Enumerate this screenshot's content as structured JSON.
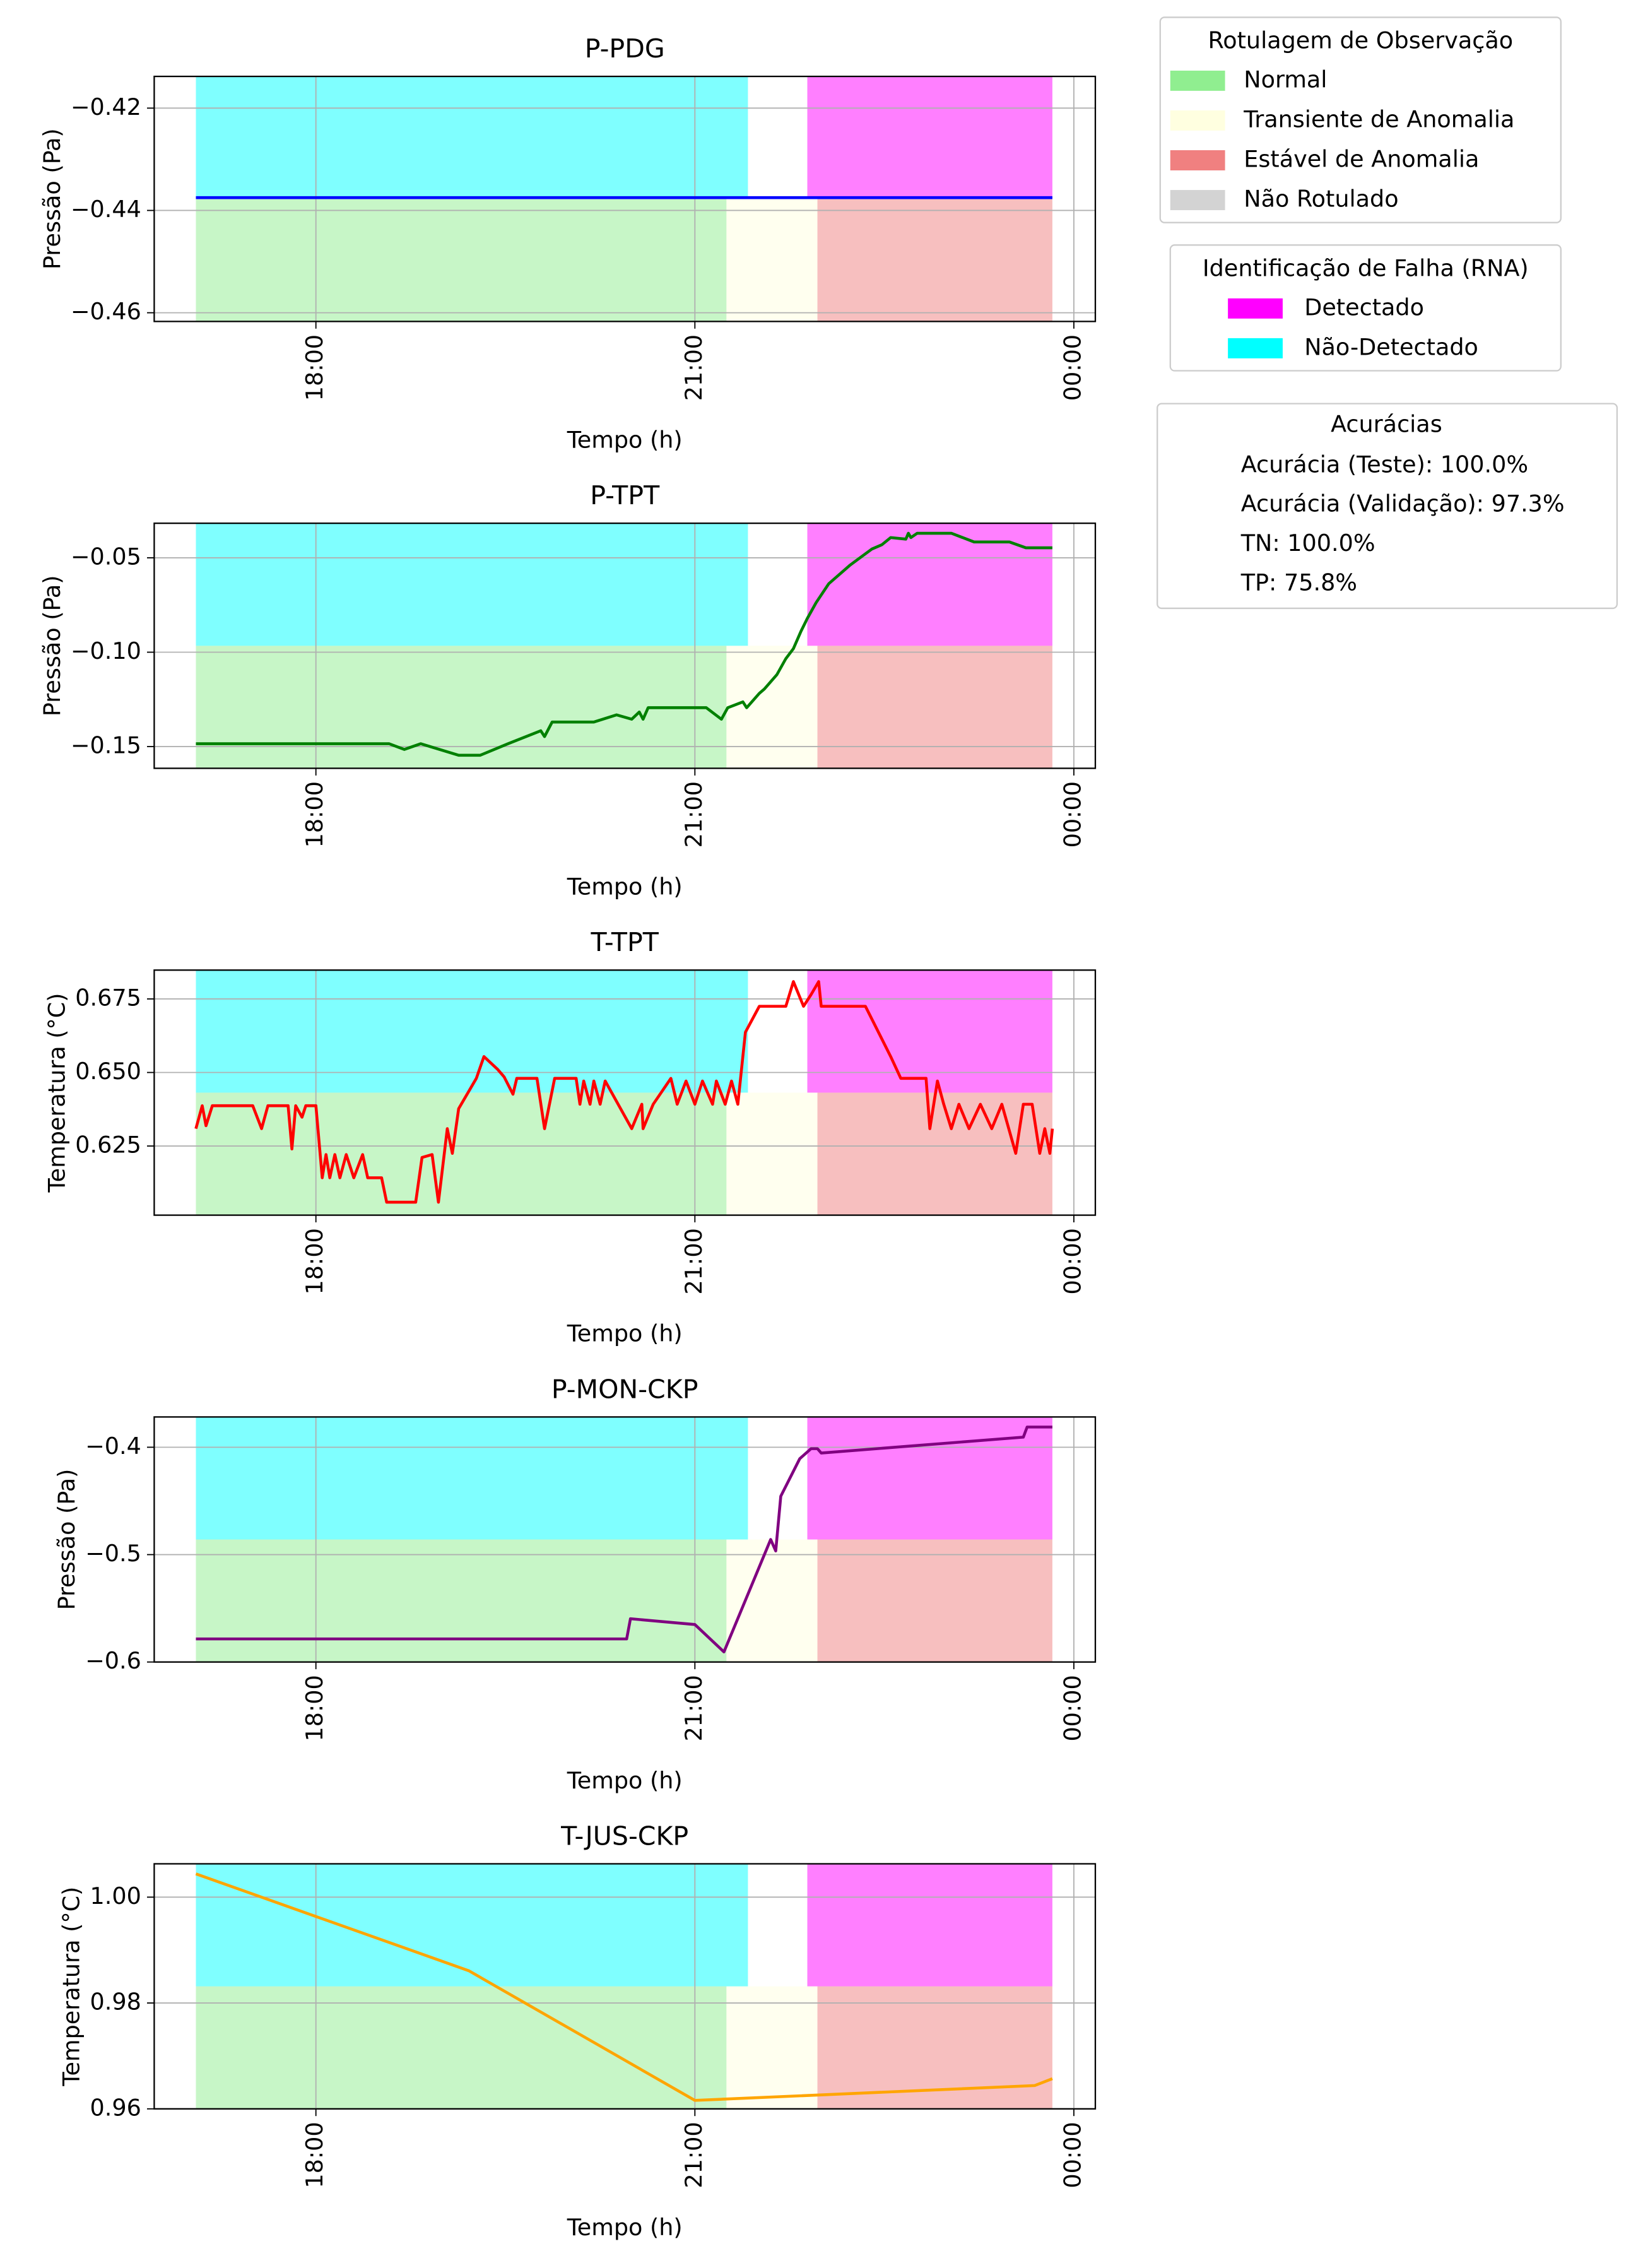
{
  "chart_data": [
    {
      "type": "line",
      "title": "P-PDG",
      "xlabel": "Tempo (h)",
      "ylabel": "Pressão (Pa)",
      "color": "blue",
      "x": [
        17.05,
        23.83
      ],
      "values": [
        -0.4375,
        -0.4375
      ],
      "xlim": [
        16.72,
        24.17
      ],
      "xticks": [
        {
          "value": 18,
          "label": "18:00"
        },
        {
          "value": 21,
          "label": "21:00"
        },
        {
          "value": 24,
          "label": "00:00"
        }
      ],
      "ylim": [
        -0.4617,
        -0.4138
      ],
      "yticks": [
        {
          "value": -0.42,
          "label": "−0.42"
        },
        {
          "value": -0.44,
          "label": "−0.44"
        },
        {
          "value": -0.46,
          "label": "−0.46"
        }
      ],
      "grid": true
    },
    {
      "type": "line",
      "title": "P-TPT",
      "xlabel": "Tempo (h)",
      "ylabel": "Pressão (Pa)",
      "color": "green",
      "x": [
        17.05,
        18.58,
        18.7,
        18.83,
        19.13,
        19.3,
        19.52,
        19.78,
        19.81,
        19.87,
        20.2,
        20.38,
        20.5,
        20.56,
        20.59,
        20.63,
        21.09,
        21.21,
        21.26,
        21.38,
        21.41,
        21.51,
        21.55,
        21.65,
        21.72,
        21.78,
        21.84,
        21.89,
        21.96,
        22.06,
        22.23,
        22.4,
        22.48,
        22.55,
        22.67,
        22.69,
        22.71,
        22.76,
        23.03,
        23.21,
        23.49,
        23.62,
        23.83
      ],
      "values": [
        -0.1485,
        -0.1485,
        -0.1515,
        -0.1485,
        -0.1546,
        -0.1546,
        -0.1485,
        -0.1416,
        -0.1447,
        -0.137,
        -0.137,
        -0.1332,
        -0.1355,
        -0.1317,
        -0.1355,
        -0.1294,
        -0.1294,
        -0.1355,
        -0.1294,
        -0.1263,
        -0.1294,
        -0.1218,
        -0.1195,
        -0.1118,
        -0.1034,
        -0.0981,
        -0.0889,
        -0.0821,
        -0.0737,
        -0.0637,
        -0.0538,
        -0.0454,
        -0.0431,
        -0.0393,
        -0.0401,
        -0.037,
        -0.0393,
        -0.037,
        -0.037,
        -0.0416,
        -0.0416,
        -0.0447,
        -0.0447
      ],
      "xlim": [
        16.72,
        24.17
      ],
      "xticks": [
        {
          "value": 18,
          "label": "18:00"
        },
        {
          "value": 21,
          "label": "21:00"
        },
        {
          "value": 24,
          "label": "00:00"
        }
      ],
      "ylim": [
        -0.1615,
        -0.0317
      ],
      "yticks": [
        {
          "value": -0.05,
          "label": "−0.05"
        },
        {
          "value": -0.1,
          "label": "−0.10"
        },
        {
          "value": -0.15,
          "label": "−0.15"
        }
      ],
      "grid": true
    },
    {
      "type": "line",
      "title": "T-TPT",
      "xlabel": "Tempo (h)",
      "ylabel": "Temperatura (°C)",
      "color": "red",
      "x": [
        17.05,
        17.1,
        17.13,
        17.18,
        17.5,
        17.57,
        17.62,
        17.78,
        17.81,
        17.84,
        17.89,
        17.92,
        18.0,
        18.05,
        18.08,
        18.11,
        18.15,
        18.19,
        18.24,
        18.3,
        18.37,
        18.41,
        18.52,
        18.56,
        18.79,
        18.84,
        18.92,
        18.97,
        19.04,
        19.08,
        19.13,
        19.27,
        19.33,
        19.44,
        19.49,
        19.56,
        19.59,
        19.75,
        19.81,
        19.89,
        20.06,
        20.09,
        20.12,
        20.17,
        20.2,
        20.25,
        20.29,
        20.5,
        20.58,
        20.59,
        20.67,
        20.81,
        20.86,
        20.93,
        21.0,
        21.06,
        21.14,
        21.17,
        21.24,
        21.29,
        21.34,
        21.4,
        21.51,
        21.72,
        21.78,
        21.86,
        21.92,
        21.98,
        22.0,
        22.35,
        22.55,
        22.63,
        22.83,
        22.86,
        22.92,
        22.97,
        23.03,
        23.09,
        23.17,
        23.26,
        23.35,
        23.43,
        23.54,
        23.6,
        23.67,
        23.73,
        23.77,
        23.81,
        23.83
      ],
      "values": [
        0.6309,
        0.6387,
        0.6319,
        0.6387,
        0.6387,
        0.6309,
        0.6387,
        0.6387,
        0.624,
        0.6387,
        0.6348,
        0.6387,
        0.6387,
        0.6142,
        0.6221,
        0.6142,
        0.6221,
        0.6142,
        0.6221,
        0.6142,
        0.6221,
        0.6142,
        0.6142,
        0.6059,
        0.6059,
        0.6211,
        0.6221,
        0.6059,
        0.6309,
        0.6225,
        0.6377,
        0.648,
        0.6554,
        0.651,
        0.6485,
        0.6426,
        0.648,
        0.648,
        0.6309,
        0.648,
        0.648,
        0.6392,
        0.6471,
        0.6392,
        0.6471,
        0.6392,
        0.6471,
        0.6309,
        0.6392,
        0.6309,
        0.6392,
        0.648,
        0.6392,
        0.6471,
        0.6392,
        0.6471,
        0.6392,
        0.6471,
        0.6392,
        0.6471,
        0.6392,
        0.6637,
        0.6725,
        0.6725,
        0.6809,
        0.6725,
        0.6765,
        0.6809,
        0.6725,
        0.6725,
        0.6554,
        0.648,
        0.648,
        0.6309,
        0.6471,
        0.6392,
        0.6309,
        0.6392,
        0.6309,
        0.6392,
        0.6309,
        0.6392,
        0.6225,
        0.6392,
        0.6392,
        0.6225,
        0.6309,
        0.6225,
        0.6309
      ],
      "xlim": [
        16.72,
        24.17
      ],
      "xticks": [
        {
          "value": 18,
          "label": "18:00"
        },
        {
          "value": 21,
          "label": "21:00"
        },
        {
          "value": 24,
          "label": "00:00"
        }
      ],
      "ylim": [
        0.6015,
        0.6848
      ],
      "yticks": [
        0.675,
        {
          "value": 0.65,
          "label": "0.650"
        },
        0.625
      ],
      "grid": true
    },
    {
      "type": "line",
      "title": "P-MON-CKP",
      "xlabel": "Tempo (h)",
      "ylabel": "Pressão (Pa)",
      "color": "purple",
      "x": [
        17.05,
        20.46,
        20.49,
        21.0,
        21.23,
        21.6,
        21.64,
        21.68,
        21.83,
        21.92,
        21.97,
        22.0,
        23.6,
        23.63,
        23.83
      ],
      "values": [
        -0.5785,
        -0.5785,
        -0.5597,
        -0.5651,
        -0.5906,
        -0.4859,
        -0.4966,
        -0.4456,
        -0.4107,
        -0.4013,
        -0.4013,
        -0.4054,
        -0.3906,
        -0.3812,
        -0.3812
      ],
      "xlim": [
        16.72,
        24.17
      ],
      "xticks": [
        {
          "value": 18,
          "label": "18:00"
        },
        {
          "value": 21,
          "label": "21:00"
        },
        {
          "value": 24,
          "label": "00:00"
        }
      ],
      "ylim": [
        -0.6,
        -0.3718
      ],
      "yticks": [
        {
          "value": -0.4,
          "label": "−0.4"
        },
        {
          "value": -0.5,
          "label": "−0.5"
        },
        {
          "value": -0.6,
          "label": "−0.6"
        }
      ],
      "grid": true
    },
    {
      "type": "line",
      "title": "T-JUS-CKP",
      "xlabel": "Tempo (h)",
      "ylabel": "Temperatura (°C)",
      "color": "orange",
      "x": [
        17.05,
        19.21,
        21.0,
        23.69,
        23.83
      ],
      "values": [
        1.0044,
        0.9861,
        0.9616,
        0.9644,
        0.9657
      ],
      "xlim": [
        16.72,
        24.17
      ],
      "xticks": [
        {
          "value": 18,
          "label": "18:00"
        },
        {
          "value": 21,
          "label": "21:00"
        },
        {
          "value": 24,
          "label": "00:00"
        }
      ],
      "ylim": [
        0.96,
        1.0063
      ],
      "yticks": [
        {
          "value": 1,
          "label": "1.00"
        },
        0.98,
        0.96
      ],
      "grid": true
    }
  ],
  "legends": [
    {
      "title": "Rotulagem de Observação",
      "entries": [
        {
          "name": "Normal",
          "color": "#90ee90",
          "spans": [
            [
              17.05,
              21.25
            ]
          ]
        },
        {
          "name": "Transiente de Anomalia",
          "color": "#ffffe0",
          "spans": [
            [
              21.25,
              21.97
            ]
          ]
        },
        {
          "name": "Estável de Anomalia",
          "color": "#f08080",
          "spans": [
            [
              21.97,
              23.83
            ]
          ]
        },
        {
          "name": "Não Rotulado",
          "color": "#d3d3d3"
        }
      ]
    },
    {
      "title": "Identificação de Falha (RNA)",
      "entries": [
        {
          "name": "Detectado",
          "color": "#ff00ff",
          "spans": [
            [
              21.89,
              23.83
            ]
          ]
        },
        {
          "name": "Não-Detectado",
          "color": "#00ffff",
          "spans": [
            [
              17.05,
              21.42
            ]
          ]
        }
      ]
    }
  ],
  "accuracies": {
    "title": "Acurácias",
    "lines": [
      "Acurácia (Teste): 100.0%",
      "Acurácia (Validação): 97.3%",
      "TN: 100.0%",
      "TP: 75.8%"
    ]
  }
}
